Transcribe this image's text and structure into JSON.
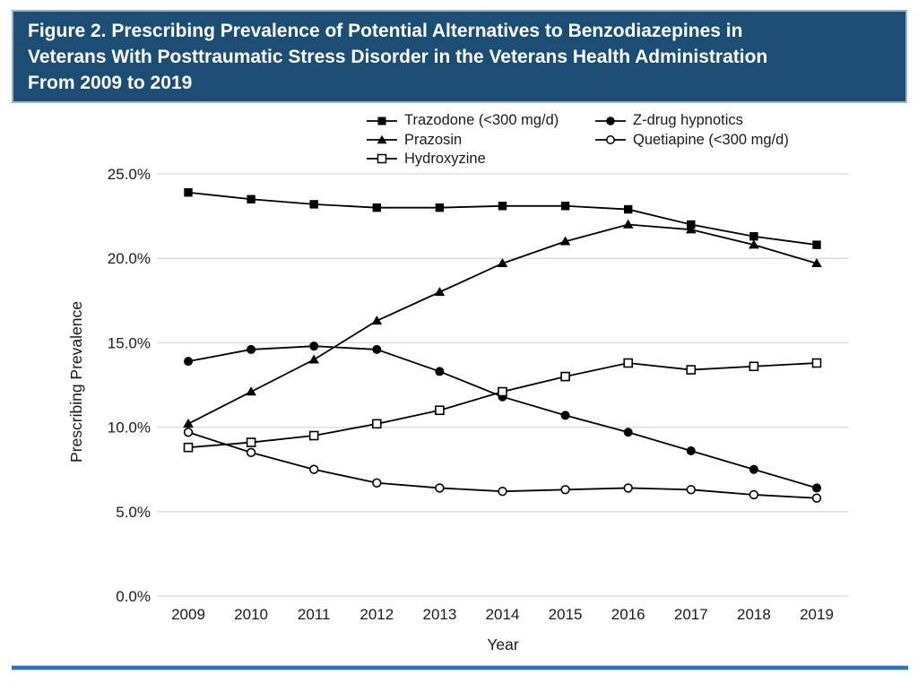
{
  "figure": {
    "title_lines": [
      "Figure 2. Prescribing Prevalence of Potential Alternatives to Benzodiazepines in",
      "Veterans With Posttraumatic Stress Disorder in the Veterans Health Administration",
      "From 2009 to 2019"
    ]
  },
  "colors": {
    "title_bar_bg": "#1c4e74",
    "title_text": "#ffffff",
    "divider_blue": "#2e75b5",
    "grid_line": "#d9d9d9",
    "series_line": "#000000",
    "axis_text": "#1b1b1b"
  },
  "chart_data": {
    "type": "line",
    "title": "",
    "xlabel": "Year",
    "ylabel": "Prescribing Prevalence",
    "x": [
      "2009",
      "2010",
      "2011",
      "2012",
      "2013",
      "2014",
      "2015",
      "2016",
      "2017",
      "2018",
      "2019"
    ],
    "ylim": [
      0,
      25
    ],
    "yticks": [
      0,
      5,
      10,
      15,
      20,
      25
    ],
    "ytick_labels": [
      "0.0%",
      "5.0%",
      "10.0%",
      "15.0%",
      "20.0%",
      "25.0%"
    ],
    "grid": "horizontal",
    "legend_position": "top",
    "series": [
      {
        "name": "Trazodone (<300 mg/d)",
        "marker": "filled-square",
        "values": [
          23.9,
          23.5,
          23.2,
          23.0,
          23.0,
          23.1,
          23.1,
          22.9,
          22.0,
          21.3,
          20.8
        ]
      },
      {
        "name": "Prazosin",
        "marker": "filled-triangle",
        "values": [
          10.2,
          12.1,
          14.0,
          16.3,
          18.0,
          19.7,
          21.0,
          22.0,
          21.7,
          20.8,
          19.7
        ]
      },
      {
        "name": "Hydroxyzine",
        "marker": "open-square",
        "values": [
          8.8,
          9.1,
          9.5,
          10.2,
          11.0,
          12.1,
          13.0,
          13.8,
          13.4,
          13.6,
          13.8
        ]
      },
      {
        "name": "Z-drug hypnotics",
        "marker": "filled-circle",
        "values": [
          13.9,
          14.6,
          14.8,
          14.6,
          13.3,
          11.8,
          10.7,
          9.7,
          8.6,
          7.5,
          6.4
        ]
      },
      {
        "name": "Quetiapine (<300 mg/d)",
        "marker": "open-circle",
        "values": [
          9.7,
          8.5,
          7.5,
          6.7,
          6.4,
          6.2,
          6.3,
          6.4,
          6.3,
          6.0,
          5.8
        ]
      }
    ]
  }
}
